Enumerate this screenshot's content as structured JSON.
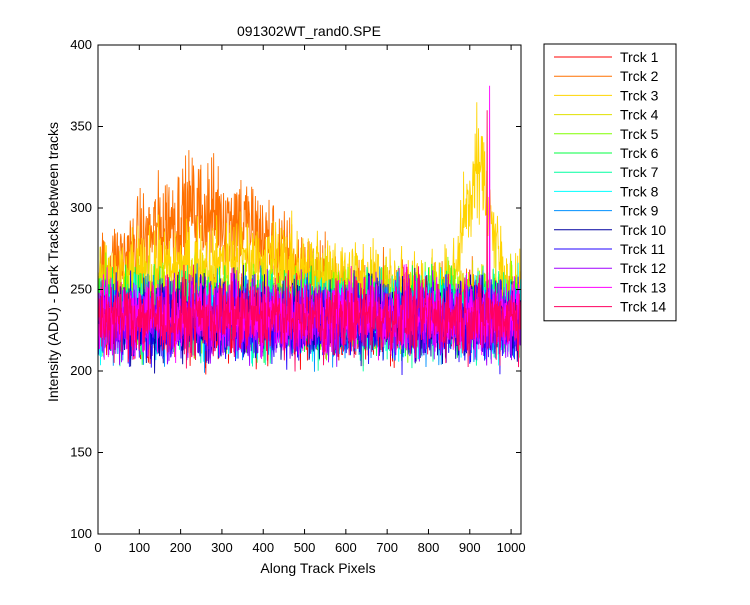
{
  "chart_data": {
    "type": "line",
    "title": "091302WT_rand0.SPE",
    "xlabel": "Along Track Pixels",
    "ylabel": "Intensity (ADU) - Dark Tracks between tracks",
    "xlim": [
      0,
      1024
    ],
    "ylim": [
      100,
      400
    ],
    "xticks": [
      0,
      100,
      200,
      300,
      400,
      500,
      600,
      700,
      800,
      900,
      1000
    ],
    "yticks": [
      100,
      150,
      200,
      250,
      300,
      350,
      400
    ],
    "grid": false,
    "legend_position": "outside-right-top",
    "n_points": 1024,
    "noise_amplitude": 18,
    "series": [
      {
        "name": "Trck 1",
        "color": "#ff0000",
        "baseline": 232
      },
      {
        "name": "Trck 2",
        "color": "#ff7000",
        "baseline": 240,
        "bump": {
          "center": 260,
          "width": 170,
          "height": 58
        }
      },
      {
        "name": "Trck 3",
        "color": "#ffd400",
        "baseline": 248,
        "bump": {
          "center": 330,
          "width": 220,
          "height": 20
        },
        "peak": {
          "center": 920,
          "width": 32,
          "height": 78
        }
      },
      {
        "name": "Trck 4",
        "color": "#e0e000",
        "baseline": 244
      },
      {
        "name": "Trck 5",
        "color": "#80ff00",
        "baseline": 238
      },
      {
        "name": "Trck 6",
        "color": "#00ff40",
        "baseline": 236
      },
      {
        "name": "Trck 7",
        "color": "#00ffa0",
        "baseline": 234
      },
      {
        "name": "Trck 8",
        "color": "#00ffff",
        "baseline": 234
      },
      {
        "name": "Trck 9",
        "color": "#0090ff",
        "baseline": 232
      },
      {
        "name": "Trck 10",
        "color": "#0000a0",
        "baseline": 232
      },
      {
        "name": "Trck 11",
        "color": "#2000ff",
        "baseline": 230
      },
      {
        "name": "Trck 12",
        "color": "#a000ff",
        "baseline": 232
      },
      {
        "name": "Trck 13",
        "color": "#ff00ff",
        "baseline": 234,
        "spike": {
          "x": 948,
          "value": 375
        }
      },
      {
        "name": "Trck 14",
        "color": "#ff0060",
        "baseline": 233,
        "spike": {
          "x": 942,
          "value": 360
        }
      }
    ]
  }
}
